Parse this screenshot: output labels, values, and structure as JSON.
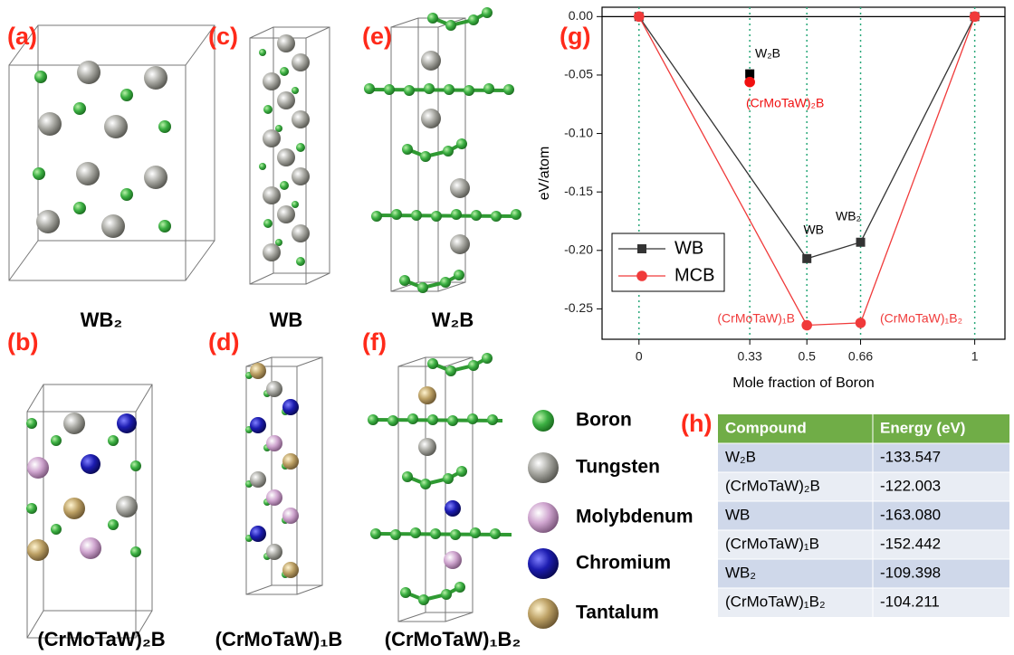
{
  "panel_labels": [
    "(a)",
    "(b)",
    "(c)",
    "(d)",
    "(e)",
    "(f)",
    "(g)",
    "(h)"
  ],
  "captions": [
    "WB₂",
    "(CrMoTaW)₂B",
    "WB",
    "(CrMoTaW)₁B",
    "W₂B",
    "(CrMoTaW)₁B₂"
  ],
  "atom_legend": [
    "Boron",
    "Tungsten",
    "Molybdenum",
    "Chromium",
    "Tantalum"
  ],
  "chart_data": {
    "type": "line",
    "xlabel": "Mole fraction of Boron",
    "ylabel": "eV/atom",
    "xlim": [
      -0.11,
      1.09
    ],
    "ylim": [
      -0.276,
      0.008
    ],
    "xticks": [
      0,
      0.33,
      0.5,
      0.66,
      1
    ],
    "yticks": [
      {
        "value": -0.25,
        "label": "-0.25"
      },
      {
        "value": -0.2,
        "label": "-0.20"
      },
      {
        "value": -0.15,
        "label": "-0.15"
      },
      {
        "value": -0.1,
        "label": "-0.10"
      },
      {
        "value": -0.05,
        "label": "-0.05"
      },
      {
        "value": 0,
        "label": "0.00"
      }
    ],
    "grid": "x",
    "grid_color": "#2aa87a",
    "legend": "lower left",
    "series": [
      {
        "name": "WB",
        "color": "#333333",
        "marker": "square",
        "x": [
          0,
          0.5,
          0.66,
          1
        ],
        "values": [
          0,
          -0.207,
          -0.193,
          0
        ],
        "labels": [
          null,
          "WB",
          "WB₂",
          null
        ]
      },
      {
        "name": "MCB",
        "color": "#f03a3a",
        "marker": "circle",
        "x": [
          0,
          0.5,
          0.66,
          1
        ],
        "values": [
          0,
          -0.264,
          -0.262,
          0
        ],
        "labels": [
          null,
          "(CrMoTaW)₁B",
          "(CrMoTaW)₁B₂",
          null
        ]
      }
    ],
    "points": [
      {
        "x": 0.33,
        "y": -0.049,
        "label": "W₂B",
        "color": "#000000",
        "marker": "square"
      },
      {
        "x": 0.33,
        "y": -0.056,
        "label": "(CrMoTaW)₂B",
        "color": "#f01010",
        "marker": "circle"
      }
    ]
  },
  "table": {
    "header": [
      "Compound",
      "Energy (eV)"
    ],
    "rows": [
      [
        "W₂B",
        "-133.547"
      ],
      [
        "(CrMoTaW)₂B",
        "-122.003"
      ],
      [
        "WB",
        "-163.080"
      ],
      [
        "(CrMoTaW)₁B",
        "-152.442"
      ],
      [
        "WB₂",
        "-109.398"
      ],
      [
        "(CrMoTaW)₁B₂",
        "-104.211"
      ]
    ]
  }
}
